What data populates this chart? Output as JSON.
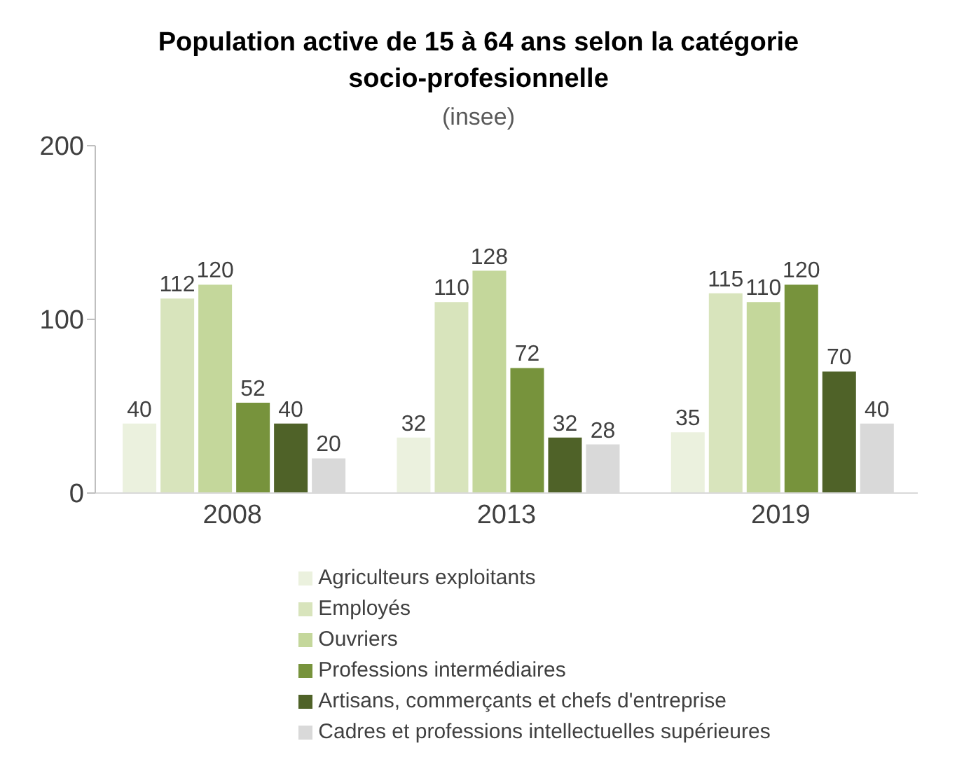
{
  "chart_data": {
    "type": "bar",
    "title": "Population active de 15 à 64 ans selon la catégorie socio-profesionnelle",
    "subtitle": "(insee)",
    "categories": [
      "2008",
      "2013",
      "2019"
    ],
    "series": [
      {
        "name": "Agriculteurs exploitants",
        "color": "#ebf1de",
        "values": [
          40,
          32,
          35
        ]
      },
      {
        "name": "Employés",
        "color": "#d8e4bc",
        "values": [
          112,
          110,
          115
        ]
      },
      {
        "name": "Ouvriers",
        "color": "#c4d79b",
        "values": [
          120,
          128,
          110
        ]
      },
      {
        "name": "Professions intermédiaires",
        "color": "#77933c",
        "values": [
          52,
          72,
          120
        ]
      },
      {
        "name": "Artisans, commerçants et chefs d'entreprise",
        "color": "#4f6228",
        "values": [
          40,
          32,
          70
        ]
      },
      {
        "name": "Cadres et professions intellectuelles supérieures",
        "color": "#d9d9d9",
        "values": [
          20,
          28,
          40
        ]
      }
    ],
    "ylim": [
      0,
      200
    ],
    "yticks": [
      0,
      100,
      200
    ],
    "grid": false,
    "legend": "bottom",
    "data_labels": true
  }
}
